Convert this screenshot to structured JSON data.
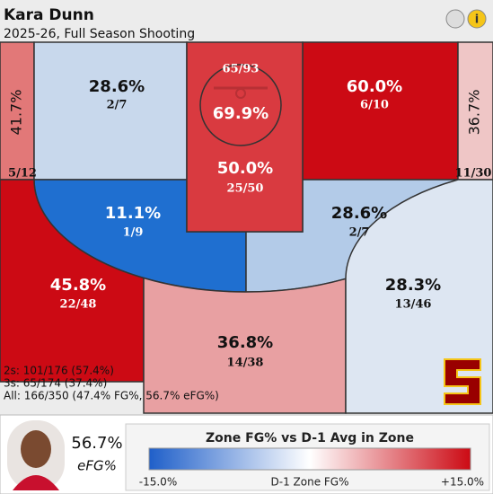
{
  "header": {
    "title": "Kara Dunn",
    "subtitle": "2025-26, Full Season Shooting"
  },
  "zones": {
    "left_corner": {
      "pct": "41.7%",
      "made_att": "5/12",
      "color": "#e27878",
      "text_color": "#111"
    },
    "top_left_mid": {
      "pct": "28.6%",
      "made_att": "2/7",
      "color": "#c8d8ec",
      "text_color": "#111"
    },
    "paint": {
      "pct": "50.0%",
      "made_att": "25/50",
      "color": "#d93a40",
      "text_color": "#fff"
    },
    "restricted": {
      "pct": "69.9%",
      "made_att": "65/93",
      "color": "#d93a40",
      "text_color": "#fff"
    },
    "top_right_mid": {
      "pct": "60.0%",
      "made_att": "6/10",
      "color": "#cc0a14",
      "text_color": "#fff"
    },
    "right_corner": {
      "pct": "36.7%",
      "made_att": "11/30",
      "color": "#efc6c6",
      "text_color": "#111"
    },
    "mid_left": {
      "pct": "11.1%",
      "made_att": "1/9",
      "color": "#1f6fd0",
      "text_color": "#fff"
    },
    "mid_right": {
      "pct": "28.6%",
      "made_att": "2/7",
      "color": "#b3cbe8",
      "text_color": "#111"
    },
    "left_wing": {
      "pct": "45.8%",
      "made_att": "22/48",
      "color": "#cc0a14",
      "text_color": "#fff"
    },
    "top_three": {
      "pct": "36.8%",
      "made_att": "14/38",
      "color": "#e8a0a2",
      "text_color": "#111"
    },
    "right_wing": {
      "pct": "28.3%",
      "made_att": "13/46",
      "color": "#dde6f2",
      "text_color": "#111"
    }
  },
  "summary": [
    "2s: 101/176 (57.4%)",
    "3s: 65/174 (37.4%)",
    "All: 166/350 (47.4% FG%, 56.7% eFG%)"
  ],
  "player": {
    "value": "56.7%",
    "label": "eFG%"
  },
  "legend": {
    "title": "Zone FG% vs D-1 Avg in Zone",
    "low": "-15.0%",
    "mid": "D-1 Zone FG%",
    "high": "+15.0%",
    "low_color": "#1f5fc9",
    "high_color": "#cc0a14"
  }
}
